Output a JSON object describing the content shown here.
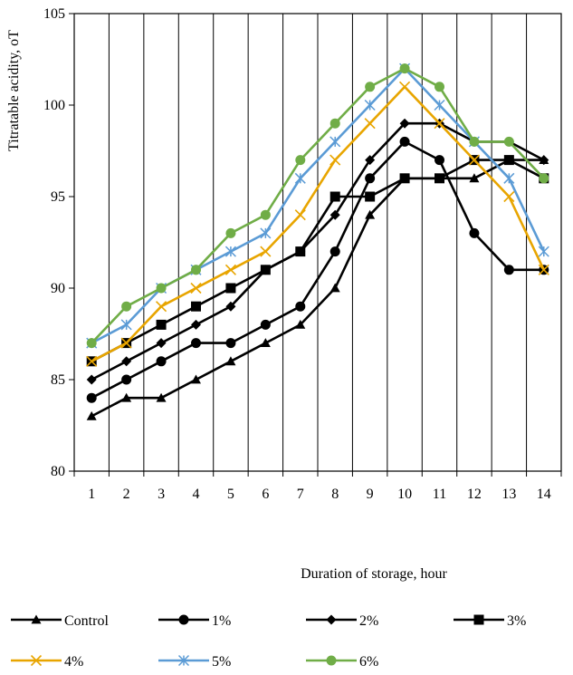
{
  "chart_data": {
    "type": "line",
    "title": "",
    "xlabel": "Duration of storage, hour",
    "ylabel": "Titratable acidity, оТ",
    "x": [
      1,
      2,
      3,
      4,
      5,
      6,
      7,
      8,
      9,
      10,
      11,
      12,
      13,
      14
    ],
    "x_tick_labels": [
      "1",
      "2",
      "3",
      "4",
      "5",
      "6",
      "7",
      "8",
      "9",
      "10",
      "11",
      "12",
      "13",
      "14"
    ],
    "ylim": [
      80,
      105
    ],
    "y_ticks": [
      80,
      85,
      90,
      95,
      100,
      105
    ],
    "y_tick_labels": [
      "80",
      "85",
      "90",
      "95",
      "100",
      "105"
    ],
    "grid": "vertical gridlines on",
    "legend_position": "bottom",
    "series": [
      {
        "name": "Control",
        "color": "#000000",
        "marker": "triangle",
        "values": [
          83,
          84,
          84,
          85,
          86,
          87,
          88,
          90,
          94,
          96,
          96,
          96,
          97,
          97
        ]
      },
      {
        "name": "1%",
        "color": "#000000",
        "marker": "circle",
        "values": [
          84,
          85,
          86,
          87,
          87,
          88,
          89,
          92,
          96,
          98,
          97,
          93,
          91,
          91
        ]
      },
      {
        "name": "2%",
        "color": "#000000",
        "marker": "diamond",
        "values": [
          85,
          86,
          87,
          88,
          89,
          91,
          92,
          94,
          97,
          99,
          99,
          98,
          98,
          97
        ]
      },
      {
        "name": "3%",
        "color": "#000000",
        "marker": "square",
        "values": [
          86,
          87,
          88,
          89,
          90,
          91,
          92,
          95,
          95,
          96,
          96,
          97,
          97,
          96
        ]
      },
      {
        "name": "4%",
        "color": "#E8A500",
        "marker": "x",
        "values": [
          86,
          87,
          89,
          90,
          91,
          92,
          94,
          97,
          99,
          101,
          99,
          97,
          95,
          91
        ]
      },
      {
        "name": "5%",
        "color": "#5B9BD5",
        "marker": "star",
        "values": [
          87,
          88,
          90,
          91,
          92,
          93,
          96,
          98,
          100,
          102,
          100,
          98,
          96,
          92
        ]
      },
      {
        "name": "6%",
        "color": "#70AD47",
        "marker": "circle",
        "values": [
          87,
          89,
          90,
          91,
          93,
          94,
          97,
          99,
          101,
          102,
          101,
          98,
          98,
          96
        ]
      }
    ]
  }
}
